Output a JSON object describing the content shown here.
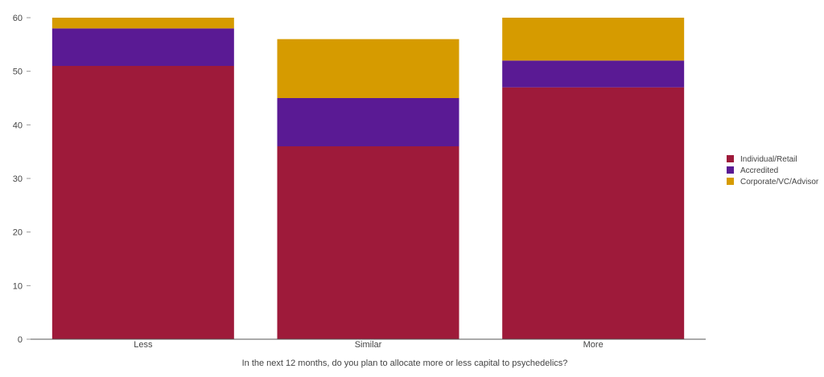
{
  "chart_data": {
    "type": "bar",
    "stacked": true,
    "categories": [
      "Less",
      "Similar",
      "More"
    ],
    "series": [
      {
        "name": "Individual/Retail",
        "values": [
          51,
          36,
          47
        ],
        "color": "#9e1a3a"
      },
      {
        "name": "Accredited",
        "values": [
          7,
          9,
          5
        ],
        "color": "#5a1a94"
      },
      {
        "name": "Corporate/VC/Advisor",
        "values": [
          2,
          11,
          8
        ],
        "color": "#d69b00"
      }
    ],
    "y_ticks": [
      "0",
      "10",
      "20",
      "30",
      "40",
      "50",
      "60"
    ],
    "ylim": [
      0,
      60
    ],
    "grid": false,
    "legend_position": "right",
    "title": "",
    "ylabel": "",
    "xlabel": "In the next 12 months, do you plan to allocate more or less capital to psychedelics?"
  }
}
